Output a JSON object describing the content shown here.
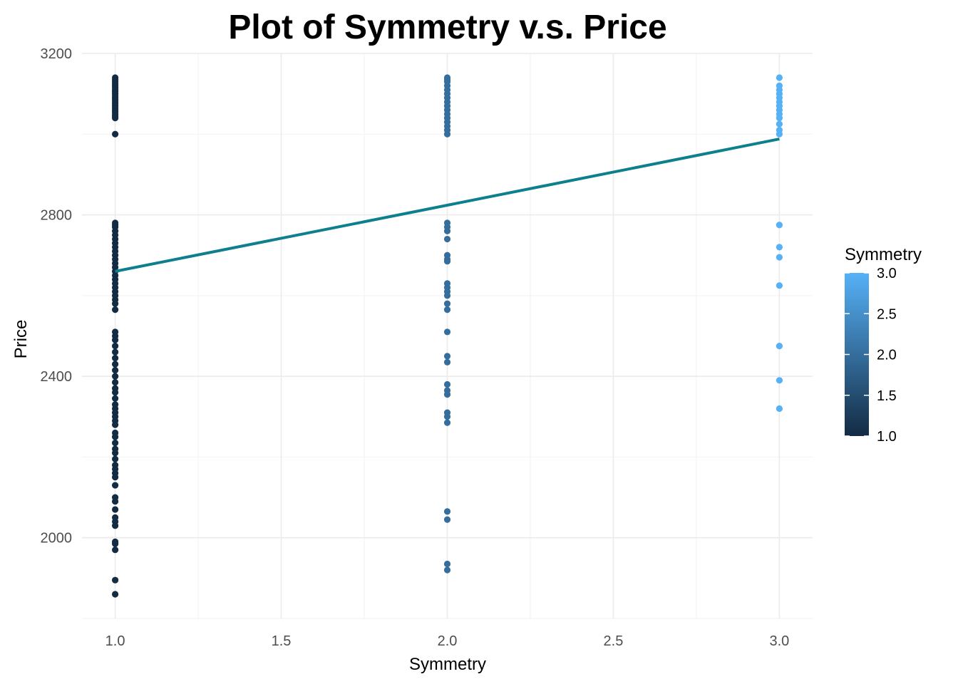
{
  "chart_data": {
    "type": "scatter",
    "title": "Plot of Symmetry v.s. Price",
    "xlabel": "Symmetry",
    "ylabel": "Price",
    "xlim": [
      0.9,
      3.1
    ],
    "ylim": [
      1800,
      3200
    ],
    "x_ticks": [
      1.0,
      1.5,
      2.0,
      2.5,
      3.0
    ],
    "x_tick_labels": [
      "1.0",
      "1.5",
      "2.0",
      "2.5",
      "3.0"
    ],
    "y_ticks": [
      2000,
      2400,
      2800,
      3200
    ],
    "y_tick_labels": [
      "2000",
      "2400",
      "2800",
      "3200"
    ],
    "grid": true,
    "color_scale": {
      "title": "Symmetry",
      "low": "#132B43",
      "high": "#56B1F7",
      "min": 1.0,
      "max": 3.0,
      "ticks": [
        1.0,
        1.5,
        2.0,
        2.5,
        3.0
      ],
      "tick_labels": [
        "1.0",
        "1.5",
        "2.0",
        "2.5",
        "3.0"
      ],
      "placement": "right"
    },
    "trend_line": {
      "color": "#0e7f8c",
      "x": [
        1.0,
        3.0
      ],
      "y": [
        2660,
        2988
      ]
    },
    "series": [
      {
        "x": 1.0,
        "y": [
          3140,
          3135,
          3130,
          3125,
          3120,
          3115,
          3110,
          3105,
          3100,
          3095,
          3090,
          3085,
          3080,
          3075,
          3070,
          3065,
          3060,
          3055,
          3050,
          3045,
          3040,
          3000,
          2780,
          2775,
          2770,
          2760,
          2750,
          2740,
          2730,
          2720,
          2710,
          2700,
          2690,
          2680,
          2670,
          2660,
          2650,
          2640,
          2630,
          2620,
          2610,
          2600,
          2590,
          2580,
          2565,
          2510,
          2500,
          2490,
          2475,
          2460,
          2445,
          2430,
          2415,
          2400,
          2385,
          2370,
          2360,
          2345,
          2330,
          2320,
          2310,
          2300,
          2290,
          2280,
          2260,
          2250,
          2235,
          2220,
          2210,
          2195,
          2180,
          2170,
          2160,
          2150,
          2130,
          2100,
          2090,
          2070,
          2050,
          2040,
          2030,
          1990,
          1985,
          1970,
          1895,
          1860
        ]
      },
      {
        "x": 2.0,
        "y": [
          3140,
          3135,
          3130,
          3120,
          3110,
          3100,
          3090,
          3080,
          3070,
          3060,
          3050,
          3040,
          3030,
          3020,
          3010,
          3000,
          2780,
          2770,
          2760,
          2740,
          2700,
          2690,
          2685,
          2630,
          2620,
          2610,
          2600,
          2580,
          2565,
          2510,
          2450,
          2435,
          2380,
          2365,
          2355,
          2310,
          2300,
          2285,
          2065,
          2045,
          1935,
          1920
        ]
      },
      {
        "x": 3.0,
        "y": [
          3140,
          3120,
          3110,
          3100,
          3090,
          3080,
          3070,
          3060,
          3050,
          3040,
          3025,
          3010,
          3000,
          2775,
          2720,
          2695,
          2625,
          2475,
          2390,
          2320
        ]
      }
    ]
  }
}
